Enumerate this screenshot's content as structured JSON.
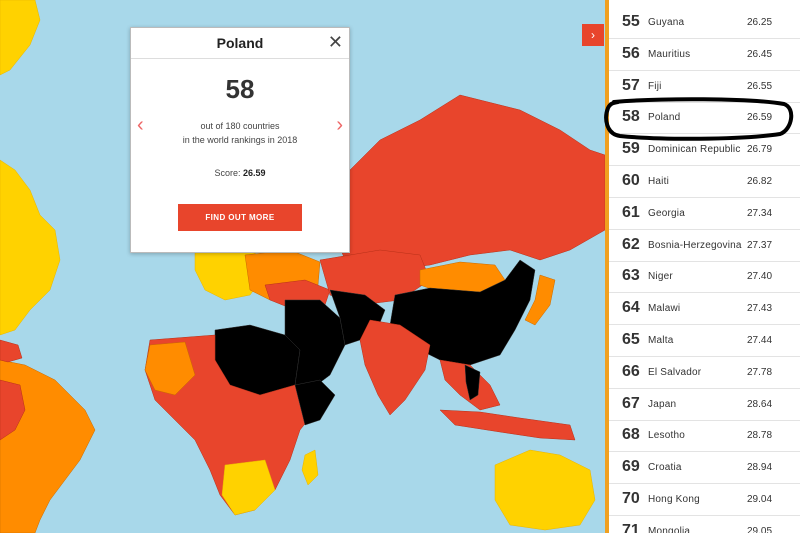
{
  "colors": {
    "ocean": "#a8d8ea",
    "good": "#ffffff",
    "satisfactory": "#ffd200",
    "problematic": "#ff8c00",
    "bad": "#e8452c",
    "very_serious": "#000000",
    "accent": "#e8452c"
  },
  "popup": {
    "country": "Poland",
    "rank": "58",
    "desc_line1": "out of 180 countries",
    "desc_line2": "in the world rankings in 2018",
    "score_label": "Score:",
    "score_value": "26.59",
    "button_label": "FIND OUT MORE",
    "close_icon": "close-icon",
    "prev_icon": "chevron-left-icon",
    "next_icon": "chevron-right-icon"
  },
  "toggle": {
    "icon": "chevron-right-icon"
  },
  "rankings": [
    {
      "rank": "55",
      "country": "Guyana",
      "score": "26.25"
    },
    {
      "rank": "56",
      "country": "Mauritius",
      "score": "26.45"
    },
    {
      "rank": "57",
      "country": "Fiji",
      "score": "26.55"
    },
    {
      "rank": "58",
      "country": "Poland",
      "score": "26.59"
    },
    {
      "rank": "59",
      "country": "Dominican Republic",
      "score": "26.79"
    },
    {
      "rank": "60",
      "country": "Haiti",
      "score": "26.82"
    },
    {
      "rank": "61",
      "country": "Georgia",
      "score": "27.34"
    },
    {
      "rank": "62",
      "country": "Bosnia-Herzegovina",
      "score": "27.37"
    },
    {
      "rank": "63",
      "country": "Niger",
      "score": "27.40"
    },
    {
      "rank": "64",
      "country": "Malawi",
      "score": "27.43"
    },
    {
      "rank": "65",
      "country": "Malta",
      "score": "27.44"
    },
    {
      "rank": "66",
      "country": "El Salvador",
      "score": "27.78"
    },
    {
      "rank": "67",
      "country": "Japan",
      "score": "28.64"
    },
    {
      "rank": "68",
      "country": "Lesotho",
      "score": "28.78"
    },
    {
      "rank": "69",
      "country": "Croatia",
      "score": "28.94"
    },
    {
      "rank": "70",
      "country": "Hong Kong",
      "score": "29.04"
    },
    {
      "rank": "71",
      "country": "Mongolia",
      "score": "29.05"
    }
  ]
}
